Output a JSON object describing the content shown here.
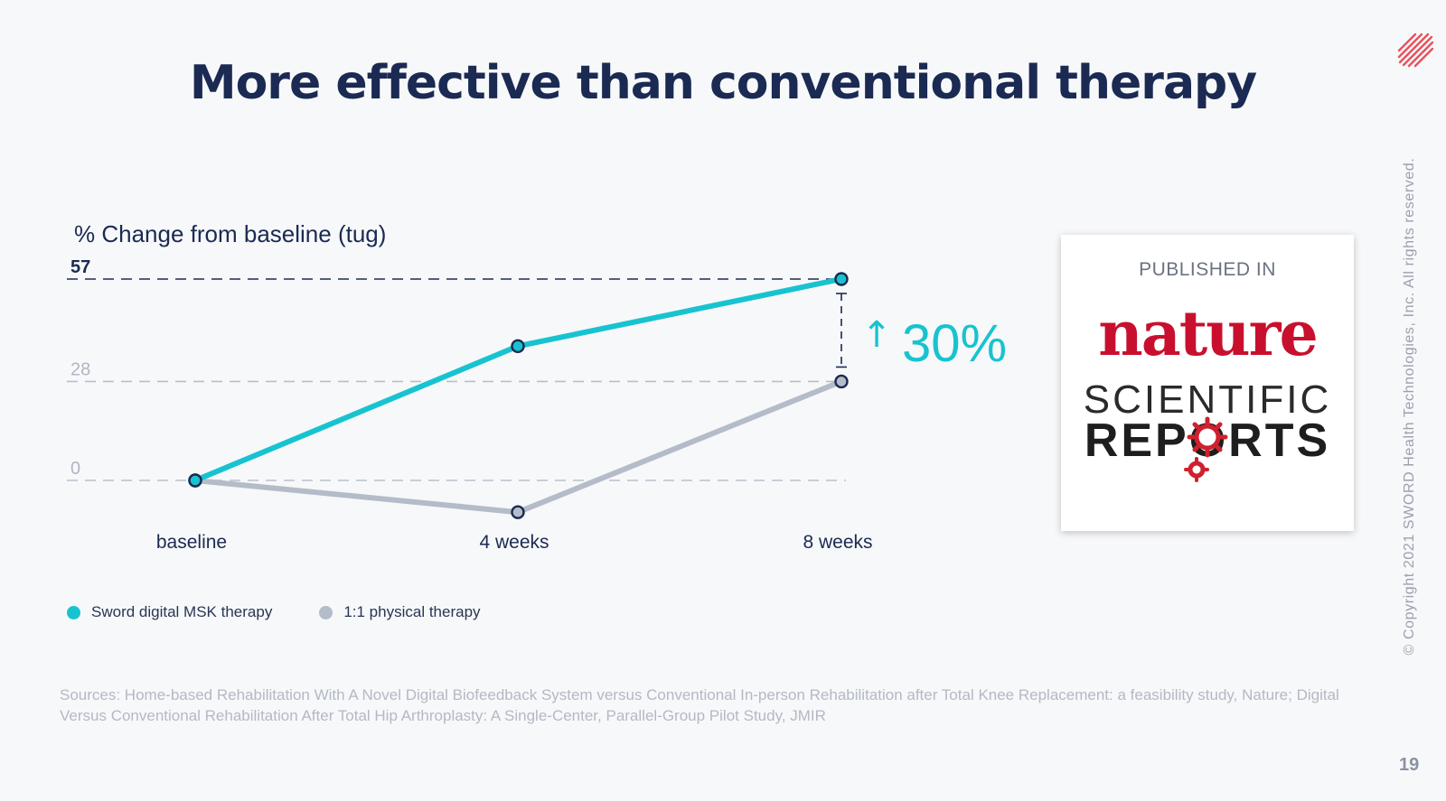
{
  "title": "More effective than conventional therapy",
  "copyright": "© Copyright 2021 SWORD Health Technologies, Inc. All rights reserved.",
  "page_number": "19",
  "brand_logo_icon": "sword-health-logo",
  "published": {
    "label": "PUBLISHED IN",
    "journal_line1": "nature",
    "journal_line2": "SCIENTIFIC",
    "journal_line3": "REPORTS"
  },
  "legend": [
    {
      "name": "Sword digital MSK therapy",
      "color": "#18c3d0"
    },
    {
      "name": "1:1 physical therapy",
      "color": "#b4bcc9"
    }
  ],
  "sources": "Sources: Home-based Rehabilitation With A Novel Digital Biofeedback System versus Conventional In-person Rehabilitation after Total Knee Replacement: a feasibility study, Nature; Digital Versus Conventional Rehabilitation After Total Hip Arthroplasty: A Single-Center, Parallel-Group Pilot Study, JMIR",
  "chart_data": {
    "type": "line",
    "ylabel": "% Change from baseline (tug)",
    "categories": [
      "baseline",
      "4 weeks",
      "8 weeks"
    ],
    "yticks": [
      0,
      28,
      57
    ],
    "ylim": [
      -10,
      57
    ],
    "series": [
      {
        "name": "Sword digital MSK therapy",
        "values": [
          0,
          38,
          57
        ],
        "color": "#18c3d0"
      },
      {
        "name": "1:1 physical therapy",
        "values": [
          0,
          -9,
          28
        ],
        "color": "#b4bcc9"
      }
    ],
    "annotation": {
      "text": "30%",
      "arrow": "↑",
      "color": "#18c3d0"
    },
    "grid": "dashed horizontal at ticks"
  }
}
